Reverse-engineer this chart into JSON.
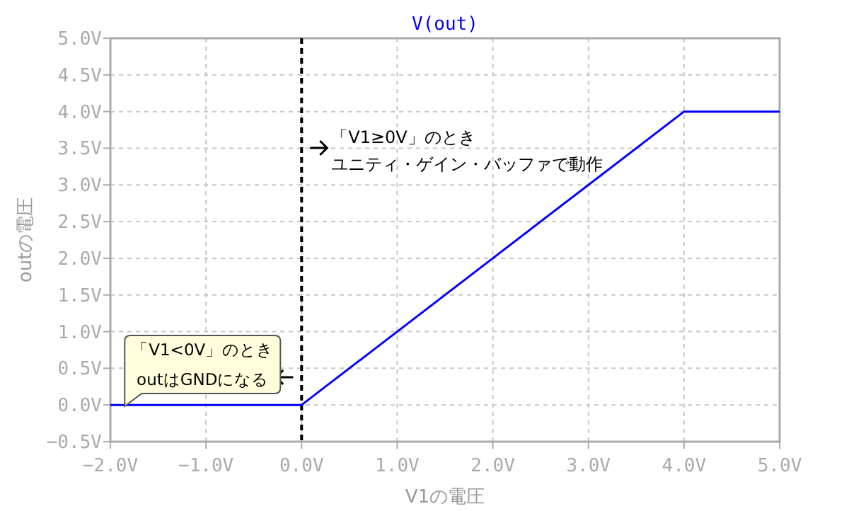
{
  "chart_data": {
    "type": "line",
    "title": "V(out)",
    "xlabel": "V1の電圧",
    "ylabel": "outの電圧",
    "x": [
      -2,
      0,
      4,
      5
    ],
    "series": [
      {
        "color": "#0000ff",
        "values": [
          0,
          0,
          4,
          4
        ]
      }
    ],
    "xlim": [
      -2,
      5
    ],
    "ylim": [
      -0.5,
      5
    ],
    "xticks": [
      {
        "value": -2,
        "label": "−2.0V"
      },
      {
        "value": -1,
        "label": "−1.0V"
      },
      {
        "value": 0,
        "label": "0.0V"
      },
      {
        "value": 1,
        "label": "1.0V"
      },
      {
        "value": 2,
        "label": "2.0V"
      },
      {
        "value": 3,
        "label": "3.0V"
      },
      {
        "value": 4,
        "label": "4.0V"
      },
      {
        "value": 5,
        "label": "5.0V"
      }
    ],
    "yticks": [
      {
        "value": -0.5,
        "label": "−0.5V"
      },
      {
        "value": 0,
        "label": "0.0V"
      },
      {
        "value": 0.5,
        "label": "0.5V"
      },
      {
        "value": 1,
        "label": "1.0V"
      },
      {
        "value": 1.5,
        "label": "1.5V"
      },
      {
        "value": 2,
        "label": "2.0V"
      },
      {
        "value": 2.5,
        "label": "2.5V"
      },
      {
        "value": 3,
        "label": "3.0V"
      },
      {
        "value": 3.5,
        "label": "3.5V"
      },
      {
        "value": 4,
        "label": "4.0V"
      },
      {
        "value": 4.5,
        "label": "4.5V"
      },
      {
        "value": 5,
        "label": "5.0V"
      }
    ],
    "ref_lines": [
      {
        "axis": "x",
        "value": 0,
        "color": "#000000",
        "line_style": "dashed"
      }
    ],
    "annotations": [
      "「V1≥0V」のとき",
      "ユニティ・ゲイン・バッファで動作",
      "「V1<0V」のとき",
      "outはGNDになる"
    ],
    "grid": true,
    "line_style": "solid",
    "marker": "none"
  }
}
